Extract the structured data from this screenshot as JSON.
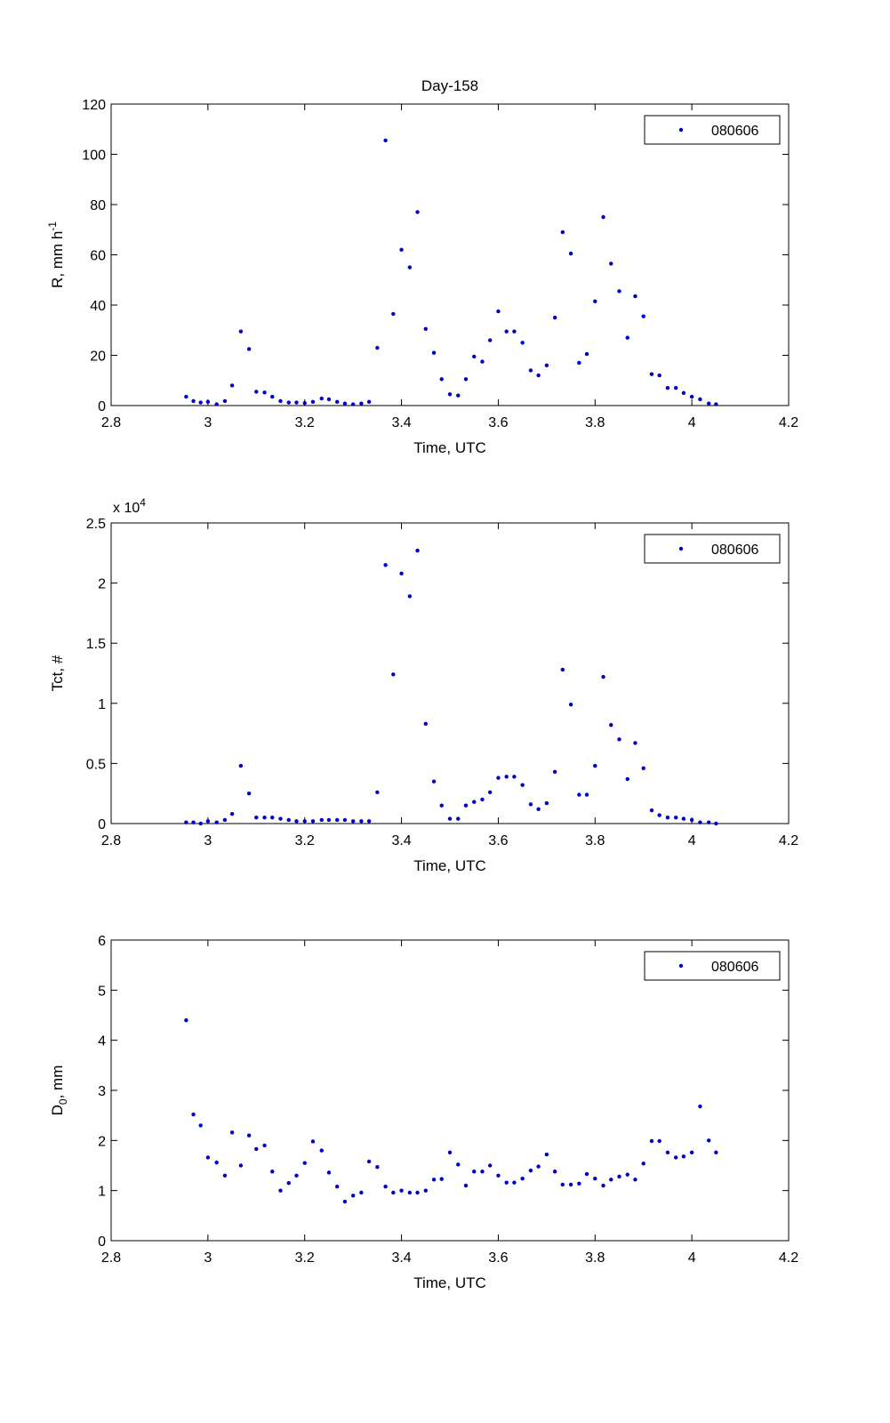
{
  "figure_title": "Day-158",
  "colors": {
    "marker": "#0000cc",
    "axes": "#000000",
    "background": "#ffffff"
  },
  "chart_data": [
    {
      "type": "scatter",
      "title": "Day-158",
      "xlabel": "Time, UTC",
      "ylabel": {
        "base": "R, mm h",
        "sup": "-1"
      },
      "y_exponent_label": null,
      "xlim": [
        2.8,
        4.2
      ],
      "ylim": [
        0,
        120
      ],
      "xticks": [
        2.8,
        3,
        3.2,
        3.4,
        3.6,
        3.8,
        4,
        4.2
      ],
      "xtick_labels": [
        "2.8",
        "3",
        "3.2",
        "3.4",
        "3.6",
        "3.8",
        "4",
        "4.2"
      ],
      "yticks": [
        0,
        20,
        40,
        60,
        80,
        100,
        120
      ],
      "ytick_labels": [
        "0",
        "20",
        "40",
        "60",
        "80",
        "100",
        "120"
      ],
      "grid": false,
      "legend_position": "top-right",
      "series": [
        {
          "name": "080606",
          "points": [
            [
              2.955,
              3.5
            ],
            [
              2.97,
              1.8
            ],
            [
              2.985,
              1.2
            ],
            [
              3.0,
              1.5
            ],
            [
              3.018,
              0.5
            ],
            [
              3.035,
              1.8
            ],
            [
              3.05,
              8
            ],
            [
              3.068,
              29.5
            ],
            [
              3.085,
              22.5
            ],
            [
              3.1,
              5.5
            ],
            [
              3.117,
              5.2
            ],
            [
              3.133,
              3.5
            ],
            [
              3.15,
              1.8
            ],
            [
              3.167,
              1.2
            ],
            [
              3.183,
              1.2
            ],
            [
              3.2,
              1.0
            ],
            [
              3.217,
              1.5
            ],
            [
              3.235,
              2.8
            ],
            [
              3.25,
              2.5
            ],
            [
              3.267,
              1.5
            ],
            [
              3.283,
              0.8
            ],
            [
              3.3,
              0.5
            ],
            [
              3.317,
              0.8
            ],
            [
              3.333,
              1.5
            ],
            [
              3.35,
              23
            ],
            [
              3.367,
              105.5
            ],
            [
              3.383,
              36.5
            ],
            [
              3.4,
              62
            ],
            [
              3.417,
              55
            ],
            [
              3.433,
              77
            ],
            [
              3.45,
              30.5
            ],
            [
              3.467,
              21
            ],
            [
              3.483,
              10.5
            ],
            [
              3.5,
              4.5
            ],
            [
              3.517,
              4
            ],
            [
              3.533,
              10.5
            ],
            [
              3.55,
              19.5
            ],
            [
              3.567,
              17.5
            ],
            [
              3.583,
              26
            ],
            [
              3.6,
              37.5
            ],
            [
              3.617,
              29.5
            ],
            [
              3.633,
              29.5
            ],
            [
              3.65,
              25
            ],
            [
              3.667,
              14
            ],
            [
              3.683,
              12
            ],
            [
              3.7,
              16
            ],
            [
              3.717,
              35
            ],
            [
              3.733,
              69
            ],
            [
              3.75,
              60.5
            ],
            [
              3.767,
              17
            ],
            [
              3.783,
              20.5
            ],
            [
              3.8,
              41.5
            ],
            [
              3.817,
              75
            ],
            [
              3.833,
              56.5
            ],
            [
              3.85,
              45.5
            ],
            [
              3.867,
              27
            ],
            [
              3.883,
              43.5
            ],
            [
              3.9,
              35.5
            ],
            [
              3.917,
              12.5
            ],
            [
              3.933,
              12
            ],
            [
              3.95,
              7
            ],
            [
              3.967,
              7
            ],
            [
              3.983,
              5
            ],
            [
              4.0,
              3.5
            ],
            [
              4.017,
              2.5
            ],
            [
              4.035,
              0.8
            ],
            [
              4.05,
              0.5
            ]
          ]
        }
      ]
    },
    {
      "type": "scatter",
      "title": "",
      "xlabel": "Time, UTC",
      "ylabel": {
        "base": "Tct, #",
        "sup": ""
      },
      "y_exponent_label": {
        "base": "x 10",
        "sup": "4"
      },
      "xlim": [
        2.8,
        4.2
      ],
      "ylim": [
        0,
        2.5
      ],
      "xticks": [
        2.8,
        3,
        3.2,
        3.4,
        3.6,
        3.8,
        4,
        4.2
      ],
      "xtick_labels": [
        "2.8",
        "3",
        "3.2",
        "3.4",
        "3.6",
        "3.8",
        "4",
        "4.2"
      ],
      "yticks": [
        0,
        0.5,
        1,
        1.5,
        2,
        2.5
      ],
      "ytick_labels": [
        "0",
        "0.5",
        "1",
        "1.5",
        "2",
        "2.5"
      ],
      "grid": false,
      "legend_position": "top-right",
      "series": [
        {
          "name": "080606",
          "points": [
            [
              2.955,
              0.01
            ],
            [
              2.97,
              0.01
            ],
            [
              2.985,
              0.0
            ],
            [
              3.0,
              0.02
            ],
            [
              3.018,
              0.01
            ],
            [
              3.035,
              0.03
            ],
            [
              3.05,
              0.08
            ],
            [
              3.068,
              0.48
            ],
            [
              3.085,
              0.25
            ],
            [
              3.1,
              0.05
            ],
            [
              3.117,
              0.05
            ],
            [
              3.133,
              0.05
            ],
            [
              3.15,
              0.04
            ],
            [
              3.167,
              0.03
            ],
            [
              3.183,
              0.02
            ],
            [
              3.2,
              0.02
            ],
            [
              3.217,
              0.02
            ],
            [
              3.235,
              0.03
            ],
            [
              3.25,
              0.03
            ],
            [
              3.267,
              0.03
            ],
            [
              3.283,
              0.03
            ],
            [
              3.3,
              0.02
            ],
            [
              3.317,
              0.02
            ],
            [
              3.333,
              0.02
            ],
            [
              3.35,
              0.26
            ],
            [
              3.367,
              2.15
            ],
            [
              3.383,
              1.24
            ],
            [
              3.4,
              2.08
            ],
            [
              3.417,
              1.89
            ],
            [
              3.433,
              2.27
            ],
            [
              3.45,
              0.83
            ],
            [
              3.467,
              0.35
            ],
            [
              3.483,
              0.15
            ],
            [
              3.5,
              0.04
            ],
            [
              3.517,
              0.04
            ],
            [
              3.533,
              0.15
            ],
            [
              3.55,
              0.18
            ],
            [
              3.567,
              0.2
            ],
            [
              3.583,
              0.26
            ],
            [
              3.6,
              0.38
            ],
            [
              3.617,
              0.39
            ],
            [
              3.633,
              0.39
            ],
            [
              3.65,
              0.32
            ],
            [
              3.667,
              0.16
            ],
            [
              3.683,
              0.12
            ],
            [
              3.7,
              0.17
            ],
            [
              3.717,
              0.43
            ],
            [
              3.733,
              1.28
            ],
            [
              3.75,
              0.99
            ],
            [
              3.767,
              0.24
            ],
            [
              3.783,
              0.24
            ],
            [
              3.8,
              0.48
            ],
            [
              3.817,
              1.22
            ],
            [
              3.833,
              0.82
            ],
            [
              3.85,
              0.7
            ],
            [
              3.867,
              0.37
            ],
            [
              3.883,
              0.67
            ],
            [
              3.9,
              0.46
            ],
            [
              3.917,
              0.11
            ],
            [
              3.933,
              0.07
            ],
            [
              3.95,
              0.05
            ],
            [
              3.967,
              0.05
            ],
            [
              3.983,
              0.04
            ],
            [
              4.0,
              0.03
            ],
            [
              4.017,
              0.01
            ],
            [
              4.035,
              0.01
            ],
            [
              4.05,
              0.0
            ]
          ]
        }
      ]
    },
    {
      "type": "scatter",
      "title": "",
      "xlabel": "Time, UTC",
      "ylabel": {
        "base": "D",
        "sub": "0",
        "tail": ", mm"
      },
      "y_exponent_label": null,
      "xlim": [
        2.8,
        4.2
      ],
      "ylim": [
        0,
        6
      ],
      "xticks": [
        2.8,
        3,
        3.2,
        3.4,
        3.6,
        3.8,
        4,
        4.2
      ],
      "xtick_labels": [
        "2.8",
        "3",
        "3.2",
        "3.4",
        "3.6",
        "3.8",
        "4",
        "4.2"
      ],
      "yticks": [
        0,
        1,
        2,
        3,
        4,
        5,
        6
      ],
      "ytick_labels": [
        "0",
        "1",
        "2",
        "3",
        "4",
        "5",
        "6"
      ],
      "grid": false,
      "legend_position": "top-right",
      "series": [
        {
          "name": "080606",
          "points": [
            [
              2.955,
              4.4
            ],
            [
              2.97,
              2.52
            ],
            [
              2.985,
              2.3
            ],
            [
              3.0,
              1.66
            ],
            [
              3.018,
              1.56
            ],
            [
              3.035,
              1.3
            ],
            [
              3.05,
              2.16
            ],
            [
              3.068,
              1.5
            ],
            [
              3.085,
              2.1
            ],
            [
              3.1,
              1.83
            ],
            [
              3.117,
              1.9
            ],
            [
              3.133,
              1.38
            ],
            [
              3.15,
              1.0
            ],
            [
              3.167,
              1.15
            ],
            [
              3.183,
              1.3
            ],
            [
              3.2,
              1.55
            ],
            [
              3.217,
              1.98
            ],
            [
              3.235,
              1.8
            ],
            [
              3.25,
              1.36
            ],
            [
              3.267,
              1.08
            ],
            [
              3.283,
              0.78
            ],
            [
              3.3,
              0.9
            ],
            [
              3.317,
              0.96
            ],
            [
              3.333,
              1.58
            ],
            [
              3.35,
              1.47
            ],
            [
              3.367,
              1.08
            ],
            [
              3.383,
              0.96
            ],
            [
              3.4,
              1.0
            ],
            [
              3.417,
              0.96
            ],
            [
              3.433,
              0.96
            ],
            [
              3.45,
              1.0
            ],
            [
              3.467,
              1.22
            ],
            [
              3.483,
              1.23
            ],
            [
              3.5,
              1.76
            ],
            [
              3.517,
              1.52
            ],
            [
              3.533,
              1.1
            ],
            [
              3.55,
              1.38
            ],
            [
              3.567,
              1.38
            ],
            [
              3.583,
              1.5
            ],
            [
              3.6,
              1.3
            ],
            [
              3.617,
              1.16
            ],
            [
              3.633,
              1.16
            ],
            [
              3.65,
              1.24
            ],
            [
              3.667,
              1.4
            ],
            [
              3.683,
              1.48
            ],
            [
              3.7,
              1.72
            ],
            [
              3.717,
              1.38
            ],
            [
              3.733,
              1.12
            ],
            [
              3.75,
              1.12
            ],
            [
              3.767,
              1.14
            ],
            [
              3.783,
              1.33
            ],
            [
              3.8,
              1.24
            ],
            [
              3.817,
              1.1
            ],
            [
              3.833,
              1.22
            ],
            [
              3.85,
              1.28
            ],
            [
              3.867,
              1.32
            ],
            [
              3.883,
              1.22
            ],
            [
              3.9,
              1.54
            ],
            [
              3.917,
              1.99
            ],
            [
              3.933,
              1.99
            ],
            [
              3.95,
              1.76
            ],
            [
              3.967,
              1.66
            ],
            [
              3.983,
              1.68
            ],
            [
              4.0,
              1.76
            ],
            [
              4.017,
              2.68
            ],
            [
              4.035,
              2.0
            ],
            [
              4.05,
              1.76
            ]
          ]
        }
      ]
    }
  ]
}
